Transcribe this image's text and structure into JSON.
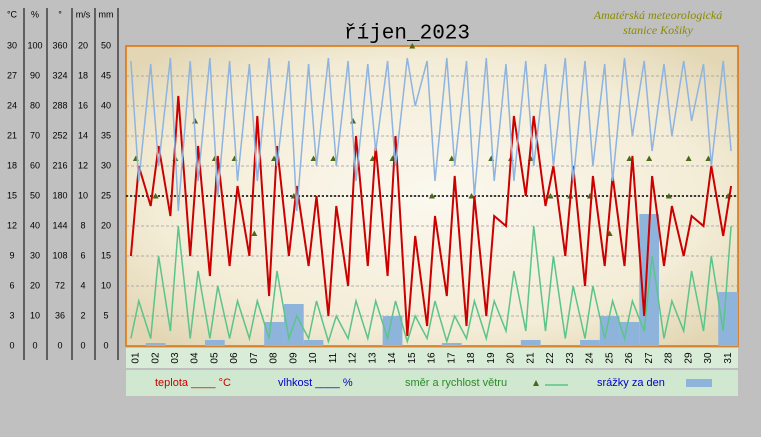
{
  "chart_data": {
    "type": "line",
    "title": "říjen_2023",
    "subtitle_lines": [
      "Amatérská meteorologická",
      "stanice Košiky"
    ],
    "xlim": [
      1,
      32
    ],
    "categories": [
      "01",
      "02",
      "03",
      "04",
      "05",
      "06",
      "07",
      "08",
      "09",
      "10",
      "11",
      "12",
      "13",
      "14",
      "15",
      "16",
      "17",
      "18",
      "19",
      "20",
      "21",
      "22",
      "23",
      "24",
      "25",
      "26",
      "27",
      "28",
      "29",
      "30",
      "31"
    ],
    "axes": [
      {
        "label": "°C",
        "lim": [
          0,
          30
        ],
        "ticks": [
          0,
          3,
          6,
          9,
          12,
          15,
          18,
          21,
          24,
          27,
          30
        ]
      },
      {
        "label": "%",
        "lim": [
          0,
          100
        ],
        "ticks": [
          0,
          10,
          20,
          30,
          40,
          50,
          60,
          70,
          80,
          90,
          100
        ]
      },
      {
        "label": "°",
        "lim": [
          0,
          360
        ],
        "ticks": [
          0,
          36,
          72,
          108,
          144,
          180,
          216,
          252,
          288,
          324,
          360
        ]
      },
      {
        "label": "m/s",
        "lim": [
          0,
          20
        ],
        "ticks": [
          0,
          2,
          4,
          6,
          8,
          10,
          12,
          14,
          16,
          18,
          20
        ]
      },
      {
        "label": "mm",
        "lim": [
          0,
          50
        ],
        "ticks": [
          0,
          5,
          10,
          15,
          20,
          25,
          30,
          35,
          40,
          45,
          50
        ]
      }
    ],
    "grid": true,
    "reference_line": 15,
    "series": [
      {
        "name": "teplota ____ °C",
        "kind": "line",
        "axis": 0,
        "color": "#cc0000",
        "x": [
          1.25,
          1.65,
          2.25,
          2.65,
          3.25,
          3.65,
          4.25,
          4.65,
          5.25,
          5.65,
          6.25,
          6.65,
          7.25,
          7.65,
          8.25,
          8.65,
          9.25,
          9.65,
          10.25,
          10.65,
          11.25,
          11.65,
          12.25,
          12.65,
          13.25,
          13.65,
          14.25,
          14.65,
          15.25,
          15.65,
          16.25,
          16.65,
          17.25,
          17.65,
          18.25,
          18.65,
          19.25,
          19.65,
          20.25,
          20.65,
          21.25,
          21.65,
          22.25,
          22.65,
          23.25,
          23.65,
          24.25,
          24.65,
          25.25,
          25.65,
          26.25,
          26.65,
          27.25,
          27.65,
          28.25,
          28.65,
          29.25,
          29.65,
          30.25,
          30.65,
          31.25,
          31.65
        ],
        "values": [
          9,
          18,
          14,
          20,
          13,
          25,
          9,
          20,
          7,
          19,
          8,
          16,
          9,
          23,
          5,
          20,
          9,
          16,
          8,
          15,
          3,
          14,
          6,
          21,
          8,
          20,
          7,
          21,
          1,
          11,
          2,
          13,
          5,
          17,
          2,
          15,
          3,
          13,
          12,
          23,
          15,
          23,
          14,
          18,
          9,
          18,
          6,
          17,
          8,
          17,
          8,
          19,
          3,
          17,
          8,
          14,
          9,
          13,
          12,
          18,
          11,
          16
        ]
      },
      {
        "name": "vlhkost ____ %",
        "kind": "line",
        "axis": 1,
        "color": "#8fb4e0",
        "x": [
          1.25,
          1.65,
          2.25,
          2.65,
          3.25,
          3.65,
          4.25,
          4.65,
          5.25,
          5.65,
          6.25,
          6.65,
          7.25,
          7.65,
          8.25,
          8.65,
          9.25,
          9.65,
          10.25,
          10.65,
          11.25,
          11.65,
          12.25,
          12.65,
          13.25,
          13.65,
          14.25,
          14.65,
          15.25,
          15.65,
          16.25,
          16.65,
          17.25,
          17.65,
          18.25,
          18.65,
          19.25,
          19.65,
          20.25,
          20.65,
          21.25,
          21.65,
          22.25,
          22.65,
          23.25,
          23.65,
          24.25,
          24.65,
          25.25,
          25.65,
          26.25,
          26.65,
          27.25,
          27.65,
          28.25,
          28.65,
          29.25,
          29.65,
          30.25,
          30.65,
          31.25,
          31.65
        ],
        "values": [
          95,
          55,
          94,
          60,
          96,
          45,
          95,
          55,
          96,
          50,
          95,
          55,
          94,
          55,
          96,
          60,
          95,
          45,
          94,
          60,
          96,
          60,
          95,
          55,
          94,
          65,
          95,
          60,
          96,
          80,
          95,
          55,
          96,
          60,
          95,
          50,
          96,
          55,
          94,
          55,
          95,
          60,
          94,
          60,
          96,
          55,
          95,
          60,
          94,
          55,
          96,
          70,
          95,
          65,
          94,
          70,
          95,
          75,
          94,
          60,
          95,
          65
        ]
      },
      {
        "name": "směr a rychlost větru",
        "kind": "line",
        "axis": 3,
        "color": "#5cc48a",
        "x": [
          1.25,
          1.65,
          2.25,
          2.65,
          3.25,
          3.65,
          4.25,
          4.65,
          5.25,
          5.65,
          6.25,
          6.65,
          7.25,
          7.65,
          8.25,
          8.65,
          9.25,
          9.65,
          10.25,
          10.65,
          11.25,
          11.65,
          12.25,
          12.65,
          13.25,
          13.65,
          14.25,
          14.65,
          15.25,
          15.65,
          16.25,
          16.65,
          17.25,
          17.65,
          18.25,
          18.65,
          19.25,
          19.65,
          20.25,
          20.65,
          21.25,
          21.65,
          22.25,
          22.65,
          23.25,
          23.65,
          24.25,
          24.65,
          25.25,
          25.65,
          26.25,
          26.65,
          27.25,
          27.65,
          28.25,
          28.65,
          29.25,
          29.65,
          30.25,
          30.65,
          31.25,
          31.65
        ],
        "values": [
          0.5,
          3,
          0.5,
          6,
          1,
          8,
          0.5,
          5,
          0.5,
          4,
          0.5,
          3,
          0.5,
          3,
          0.5,
          5,
          0.5,
          2,
          0.5,
          3,
          0.3,
          2,
          0.5,
          3,
          0.5,
          3,
          0.5,
          3,
          0.3,
          2,
          0.5,
          3,
          0.3,
          2,
          0.5,
          3,
          0.5,
          3,
          1,
          5,
          1,
          8,
          1,
          6,
          0.5,
          4,
          0.5,
          4,
          0.5,
          3,
          0.5,
          3,
          1,
          6,
          0.5,
          3,
          1,
          5,
          1,
          6,
          1,
          8
        ]
      },
      {
        "kind": "points",
        "axis": 2,
        "color": "#4a6a1a",
        "x": [
          1.5,
          2.5,
          3.5,
          4.5,
          5.5,
          6.5,
          7.5,
          8.5,
          9.5,
          10.5,
          11.5,
          12.5,
          13.5,
          14.5,
          15.5,
          16.5,
          17.5,
          18.5,
          19.5,
          20.5,
          21.5,
          22.5,
          23.5,
          24.5,
          25.5,
          26.5,
          27.5,
          28.5,
          29.5,
          30.5,
          31.5
        ],
        "values": [
          225,
          180,
          225,
          270,
          225,
          225,
          135,
          225,
          180,
          225,
          225,
          270,
          225,
          225,
          360,
          180,
          225,
          180,
          225,
          225,
          225,
          180,
          180,
          180,
          135,
          225,
          225,
          180,
          225,
          225,
          180
        ]
      },
      {
        "name": "srážky za den",
        "kind": "bars",
        "axis": 4,
        "color": "#8fb4dc",
        "values": [
          0,
          0.5,
          0,
          0,
          1,
          0,
          0,
          4,
          7,
          1,
          0,
          0,
          0,
          5,
          0,
          0,
          0.5,
          0,
          0,
          0,
          1,
          0,
          0,
          1,
          5,
          4,
          22,
          0,
          0,
          0,
          9
        ]
      }
    ]
  }
}
